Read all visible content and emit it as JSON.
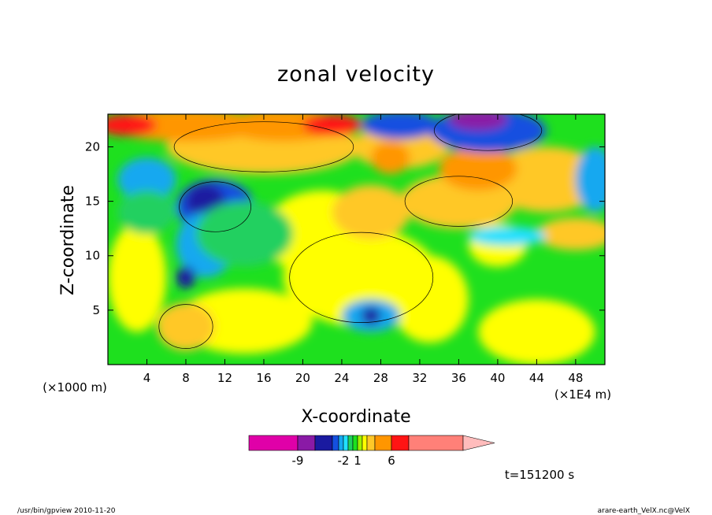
{
  "chart_data": {
    "type": "heatmap",
    "title": "zonal velocity",
    "xlabel": "X-coordinate",
    "ylabel": "Z-coordinate",
    "x_unit_label": "(×1E4 m)",
    "y_unit_label": "(×1000 m)",
    "x_ticks": [
      4,
      8,
      12,
      16,
      20,
      24,
      28,
      32,
      36,
      40,
      44,
      48
    ],
    "y_ticks": [
      5,
      10,
      15,
      20
    ],
    "xlim": [
      0,
      51
    ],
    "ylim": [
      0,
      23
    ],
    "colorbar": {
      "levels": [
        -12,
        -9,
        -7,
        -5,
        -3,
        -2,
        -1,
        0,
        1,
        2,
        3,
        4,
        6,
        8,
        14
      ],
      "colors": [
        "#e000a8",
        "#8a1aa6",
        "#1a1aa0",
        "#1450e0",
        "#16a8f0",
        "#20e0ff",
        "#20d060",
        "#1ee01e",
        "#a0f000",
        "#ffff00",
        "#ffc828",
        "#ff9600",
        "#ff1414",
        "#ff8078",
        "#ffbcbc"
      ],
      "tick_labels": [
        "-9",
        "-2",
        "1",
        "6"
      ],
      "extend": "max"
    },
    "grid": false,
    "legend": "colorbar-bottom"
  },
  "annotations": {
    "time": "t=151200 s"
  },
  "footer": {
    "left": "/usr/bin/gpview   2010-11-20",
    "right": "arare-earth_VelX.nc@VelX"
  }
}
